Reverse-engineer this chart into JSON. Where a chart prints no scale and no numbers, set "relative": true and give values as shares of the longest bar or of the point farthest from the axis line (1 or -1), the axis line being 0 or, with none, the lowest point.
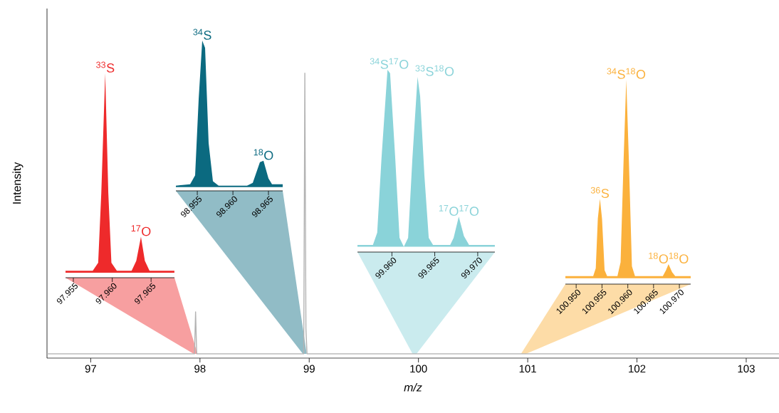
{
  "chart_data": [
    {
      "type": "line",
      "xlabel": "m/z",
      "ylabel": "Intensity",
      "relative": true,
      "color": "#b3b3b3",
      "x": [
        96.6,
        97.95,
        97.96,
        97.97,
        98.95,
        98.96,
        98.97,
        98.98,
        103.3
      ],
      "values": [
        0,
        0,
        0.15,
        0,
        0,
        1,
        0.09,
        0,
        0
      ],
      "xlim": [
        96.6,
        103.3
      ],
      "xticks": [
        97,
        98,
        99,
        100,
        101,
        102,
        103
      ]
    },
    {
      "type": "area",
      "relative": true,
      "color": "#ee2a2b",
      "x": [
        97.954,
        97.9575,
        97.9582,
        97.9586,
        97.9591,
        97.9595,
        97.9599,
        97.9606,
        97.9625,
        97.9631,
        97.9637,
        97.9642,
        97.9648,
        97.968
      ],
      "values": [
        0.01,
        0.01,
        0.05,
        0.4,
        1,
        0.4,
        0.05,
        0.01,
        0.01,
        0.06,
        0.18,
        0.06,
        0.01,
        0.01
      ],
      "xlim": [
        97.954,
        97.968
      ],
      "xticks": [
        97.955,
        {
          "value": 97.96,
          "label": "97.960"
        },
        97.965
      ],
      "annotations": [
        {
          "text": "$^{33}$S",
          "x": 97.9591,
          "y": 1
        },
        {
          "text": "$^{17}$O",
          "x": 97.9637,
          "y": 0.18
        }
      ]
    },
    {
      "type": "area",
      "relative": true,
      "color": "#0b6a80",
      "x": [
        98.952,
        98.954,
        98.9547,
        98.9552,
        98.9557,
        98.9561,
        98.9566,
        98.9572,
        98.958,
        98.962,
        98.9628,
        98.9638,
        98.9643,
        98.965,
        98.9655,
        98.967
      ],
      "values": [
        0.01,
        0.02,
        0.08,
        0.6,
        1,
        0.95,
        0.3,
        0.04,
        0.01,
        0.01,
        0.03,
        0.17,
        0.18,
        0.06,
        0.02,
        0.02
      ],
      "xlim": [
        98.952,
        98.967
      ],
      "xticks": [
        98.955,
        {
          "value": 98.96,
          "label": "98.960"
        },
        98.965
      ],
      "annotations": [
        {
          "text": "$^{34}$S",
          "x": 98.9557,
          "y": 1
        },
        {
          "text": "$^{18}$O",
          "x": 98.9643,
          "y": 0.18
        }
      ]
    },
    {
      "type": "area",
      "relative": true,
      "color": "#8ad3d9",
      "x": [
        99.956,
        99.9578,
        99.9583,
        99.9588,
        99.9595,
        99.9598,
        99.9604,
        99.9609,
        99.9614,
        99.9619,
        99.9624,
        99.963,
        99.9633,
        99.9638,
        99.9643,
        99.9648,
        99.9668,
        99.9672,
        99.9678,
        99.9684,
        99.969,
        99.972
      ],
      "values": [
        0.01,
        0.01,
        0.08,
        0.5,
        1,
        0.98,
        0.5,
        0.05,
        0,
        0.05,
        0.5,
        0.96,
        0.85,
        0.4,
        0.05,
        0.01,
        0.01,
        0.05,
        0.17,
        0.06,
        0.01,
        0.01
      ],
      "xlim": [
        99.956,
        99.972
      ],
      "xticks": [
        {
          "value": 99.96,
          "label": "99.960"
        },
        99.965,
        {
          "value": 99.97,
          "label": "99.970"
        }
      ],
      "annotations": [
        {
          "text": "$^{34}$S$^{17}$O",
          "x": 99.9597,
          "y": 1
        },
        {
          "text": "$^{33}$S$^{18}$O",
          "x": 99.9631,
          "y": 0.96
        },
        {
          "text": "$^{17}$O$^{17}$O",
          "x": 99.9678,
          "y": 0.17
        }
      ]
    },
    {
      "type": "area",
      "relative": true,
      "color": "#fbb13c",
      "x": [
        100.9479,
        100.9533,
        100.9538,
        100.9542,
        100.9546,
        100.955,
        100.9555,
        100.956,
        100.958,
        100.9586,
        100.9592,
        100.9597,
        100.9602,
        100.9608,
        100.9614,
        100.9668,
        100.9674,
        100.9679,
        100.9686,
        100.9692,
        100.9722
      ],
      "values": [
        0.01,
        0.01,
        0.05,
        0.3,
        0.4,
        0.3,
        0.04,
        0.01,
        0.01,
        0.08,
        0.6,
        1,
        0.6,
        0.06,
        0.01,
        0.01,
        0.04,
        0.07,
        0.03,
        0.01,
        0.01
      ],
      "xlim": [
        100.9479,
        100.9722
      ],
      "xticks": [
        {
          "value": 100.95,
          "label": "100.950"
        },
        100.955,
        {
          "value": 100.96,
          "label": "100.960"
        },
        100.965,
        {
          "value": 100.97,
          "label": "100.970"
        }
      ],
      "annotations": [
        {
          "text": "$^{36}$S",
          "x": 100.9546,
          "y": 0.4
        },
        {
          "text": "$^{34}$S$^{18}$O",
          "x": 100.9597,
          "y": 1
        },
        {
          "text": "$^{18}$O$^{18}$O",
          "x": 100.9679,
          "y": 0.07
        }
      ]
    }
  ]
}
